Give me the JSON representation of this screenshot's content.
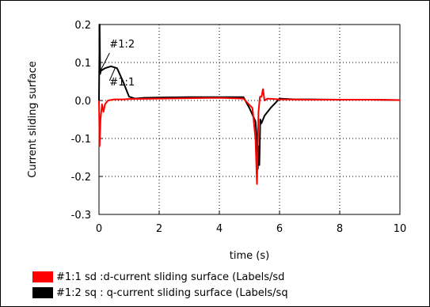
{
  "chart_data": {
    "type": "line",
    "title": "",
    "xlabel": "time (s)",
    "ylabel": "Current sliding surface",
    "xlim": [
      0,
      10
    ],
    "ylim": [
      -0.3,
      0.2
    ],
    "xticks": [
      "0",
      "2",
      "4",
      "6",
      "8",
      "10"
    ],
    "yticks": [
      "0.2",
      "0.1",
      "0.0",
      "-0.1",
      "-0.2",
      "-0.3"
    ],
    "grid": true,
    "legend_position": "bottom",
    "annotations": [
      "#1:2",
      "#1:1"
    ],
    "series": [
      {
        "name": "#1:1 sd :d-current sliding surface (Labels/sd",
        "color": "#ff0000",
        "x": [
          0,
          0.02,
          0.05,
          0.1,
          0.15,
          0.2,
          0.3,
          0.5,
          0.8,
          1.0,
          2.0,
          3.0,
          4.0,
          4.8,
          5.1,
          5.2,
          5.25,
          5.28,
          5.3,
          5.35,
          5.4,
          5.45,
          5.5,
          5.6,
          5.8,
          6.0,
          7.0,
          8.0,
          9.0,
          10.0
        ],
        "values": [
          0,
          -0.12,
          -0.05,
          -0.01,
          -0.03,
          -0.01,
          0.0,
          0.003,
          0.003,
          0.004,
          0.005,
          0.006,
          0.007,
          0.005,
          -0.02,
          -0.1,
          -0.22,
          -0.12,
          -0.03,
          0.01,
          0.01,
          0.03,
          0.0,
          0.005,
          0.004,
          0.003,
          0.002,
          0.002,
          0.002,
          0.001
        ]
      },
      {
        "name": "#1:2 sq : q-current sliding surface (Labels/sq",
        "color": "#000000",
        "x": [
          0,
          0.02,
          0.04,
          0.06,
          0.1,
          0.2,
          0.4,
          0.6,
          0.8,
          1.0,
          1.2,
          1.5,
          2.0,
          3.0,
          4.0,
          4.5,
          4.8,
          5.0,
          5.2,
          5.25,
          5.28,
          5.3,
          5.33,
          5.36,
          5.4,
          5.5,
          5.7,
          6.0,
          6.5,
          7.0,
          8.0,
          9.0,
          10.0
        ],
        "values": [
          0,
          0.2,
          0.07,
          0.078,
          0.08,
          0.085,
          0.09,
          0.085,
          0.05,
          0.01,
          0.005,
          0.007,
          0.008,
          0.009,
          0.009,
          0.009,
          0.009,
          -0.02,
          -0.055,
          -0.1,
          -0.18,
          -0.12,
          -0.17,
          -0.05,
          -0.06,
          -0.04,
          -0.02,
          0.005,
          0.003,
          0.003,
          0.002,
          0.002,
          0.001
        ]
      }
    ]
  }
}
